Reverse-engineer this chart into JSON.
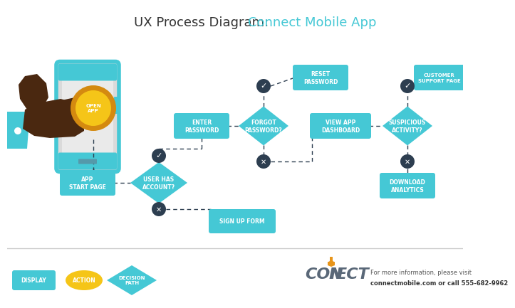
{
  "title_black": "UX Process Diagram: ",
  "title_cyan": "Connect Mobile App",
  "bg_color": "#ffffff",
  "cyan": "#45C8D5",
  "navy": "#2D3E50",
  "yellow": "#F5C518",
  "orange": "#E8951A",
  "gray_body": "#DADADA",
  "footer_bg": "#F7F7F7",
  "sep_color": "#CCCCCC",
  "footer_text_1": "For more information, please visit",
  "footer_text_2": "connectmobile.com or call 555-682-9962"
}
